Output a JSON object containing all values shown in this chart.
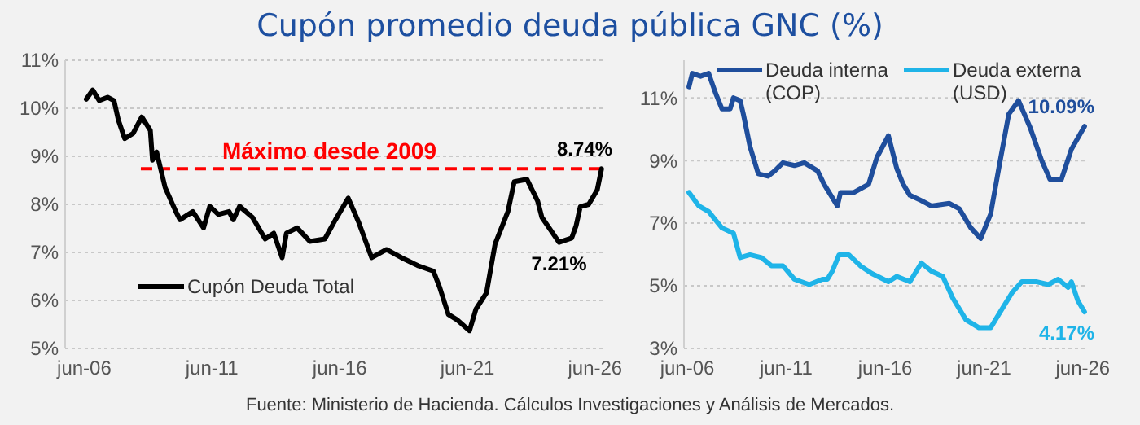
{
  "chart_data": [
    {
      "type": "line",
      "title": "Cupón promedio deuda pública GNC (%)",
      "annotations": [
        "Fuente: Ministerio de Hacienda. Cálculos Investigaciones y Análisis de Mercados.",
        {
          "text": "8.74%",
          "x": "2026-09",
          "y": 8.74
        },
        {
          "text": "7.21%",
          "x": "2025-01",
          "y": 7.21
        }
      ],
      "xlim": [
        "2005-09",
        "2026-11"
      ],
      "xticks": [
        {
          "value": "2006-06",
          "label": "jun-06"
        },
        {
          "value": "2011-06",
          "label": "jun-11"
        },
        {
          "value": "2016-06",
          "label": "jun-16"
        },
        {
          "value": "2021-06",
          "label": "jun-21"
        },
        {
          "value": "2026-06",
          "label": "jun-26"
        }
      ],
      "ylim": [
        5,
        11
      ],
      "yticks": [
        {
          "value": 5,
          "label": "5%"
        },
        {
          "value": 6,
          "label": "6%"
        },
        {
          "value": 7,
          "label": "7%"
        },
        {
          "value": 8,
          "label": "8%"
        },
        {
          "value": 9,
          "label": "9%"
        },
        {
          "value": 10,
          "label": "10%"
        },
        {
          "value": 11,
          "label": "11%"
        }
      ],
      "grid": "y",
      "legend": "bottom left",
      "ref_lines": [
        {
          "axis": "y",
          "value": 8.74,
          "label": "Máximo desde 2009",
          "color": "#ff0000",
          "line_style": "dashed"
        }
      ],
      "series": [
        {
          "name": "Cupón Deuda Total",
          "color": "#000000",
          "x": [
            "2006-07",
            "2006-10",
            "2007-01",
            "2007-05",
            "2007-08",
            "2007-10",
            "2008-01",
            "2008-05",
            "2008-09",
            "2009-01",
            "2009-02",
            "2009-04",
            "2009-08",
            "2010-01",
            "2010-03",
            "2010-09",
            "2011-02",
            "2011-05",
            "2011-09",
            "2012-02",
            "2012-04",
            "2012-07",
            "2013-01",
            "2013-07",
            "2013-11",
            "2014-03",
            "2014-05",
            "2014-10",
            "2015-04",
            "2015-11",
            "2016-04",
            "2016-10",
            "2017-03",
            "2017-09",
            "2018-04",
            "2018-11",
            "2019-07",
            "2020-02",
            "2020-05",
            "2020-09",
            "2021-01",
            "2021-07",
            "2021-10",
            "2022-03",
            "2022-07",
            "2023-01",
            "2023-04",
            "2023-10",
            "2024-03",
            "2024-05",
            "2025-01",
            "2025-07",
            "2025-09",
            "2025-11",
            "2026-03",
            "2026-07",
            "2026-09"
          ],
          "values": [
            10.19,
            10.38,
            10.16,
            10.23,
            10.16,
            9.76,
            9.37,
            9.48,
            9.82,
            9.54,
            8.92,
            9.09,
            8.35,
            7.85,
            7.68,
            7.85,
            7.51,
            7.96,
            7.79,
            7.85,
            7.68,
            7.96,
            7.73,
            7.28,
            7.4,
            6.89,
            7.4,
            7.51,
            7.23,
            7.28,
            7.68,
            8.13,
            7.62,
            6.89,
            7.06,
            6.89,
            6.72,
            6.61,
            6.27,
            5.71,
            5.6,
            5.37,
            5.82,
            6.16,
            7.17,
            7.85,
            8.47,
            8.52,
            8.07,
            7.73,
            7.21,
            7.3,
            7.55,
            7.95,
            8.0,
            8.3,
            8.74
          ]
        }
      ]
    },
    {
      "type": "line",
      "annotations": [
        {
          "text": "10.09%",
          "x": "2026-07",
          "y": 10.09
        },
        {
          "text": "4.17%",
          "x": "2026-07",
          "y": 4.17
        }
      ],
      "xlim": [
        "2006-04",
        "2026-09"
      ],
      "xticks": [
        {
          "value": "2006-06",
          "label": "jun-06"
        },
        {
          "value": "2011-06",
          "label": "jun-11"
        },
        {
          "value": "2016-06",
          "label": "jun-16"
        },
        {
          "value": "2021-06",
          "label": "jun-21"
        },
        {
          "value": "2026-06",
          "label": "jun-26"
        }
      ],
      "ylim": [
        3,
        12.2
      ],
      "yticks": [
        {
          "value": 3,
          "label": "3%"
        },
        {
          "value": 5,
          "label": "5%"
        },
        {
          "value": 7,
          "label": "7%"
        },
        {
          "value": 9,
          "label": "9%"
        },
        {
          "value": 11,
          "label": "11%"
        }
      ],
      "grid": "y",
      "legend": "top",
      "series": [
        {
          "name": "Deuda interna (COP)",
          "color": "#1f4e9c",
          "x": [
            "2006-07",
            "2006-09",
            "2007-02",
            "2007-07",
            "2007-11",
            "2008-03",
            "2008-08",
            "2008-10",
            "2009-02",
            "2009-04",
            "2009-08",
            "2010-01",
            "2010-07",
            "2010-11",
            "2011-04",
            "2011-11",
            "2012-05",
            "2013-01",
            "2013-05",
            "2014-01",
            "2014-03",
            "2014-11",
            "2015-08",
            "2016-01",
            "2016-08",
            "2017-01",
            "2017-05",
            "2017-09",
            "2018-04",
            "2018-10",
            "2019-09",
            "2020-03",
            "2020-10",
            "2021-04",
            "2021-10",
            "2022-03",
            "2022-09",
            "2023-03",
            "2023-10",
            "2024-05",
            "2024-10",
            "2025-05",
            "2025-11",
            "2026-07"
          ],
          "values": [
            11.35,
            11.78,
            11.69,
            11.78,
            11.17,
            10.65,
            10.65,
            11.0,
            10.91,
            10.48,
            9.45,
            8.58,
            8.5,
            8.67,
            8.93,
            8.84,
            8.93,
            8.67,
            8.24,
            7.55,
            7.98,
            7.98,
            8.24,
            9.1,
            9.79,
            8.75,
            8.24,
            7.89,
            7.72,
            7.55,
            7.63,
            7.46,
            6.85,
            6.51,
            7.29,
            8.75,
            10.48,
            10.91,
            10.05,
            9.0,
            8.4,
            8.4,
            9.36,
            10.09
          ]
        },
        {
          "name": "Deuda externa (USD)",
          "color": "#1fb4e8",
          "x": [
            "2006-07",
            "2007-01",
            "2007-07",
            "2008-03",
            "2008-10",
            "2009-02",
            "2009-08",
            "2010-03",
            "2010-09",
            "2011-04",
            "2011-11",
            "2012-08",
            "2013-04",
            "2013-07",
            "2013-10",
            "2014-02",
            "2014-08",
            "2015-03",
            "2015-10",
            "2016-08",
            "2017-01",
            "2017-09",
            "2018-04",
            "2018-10",
            "2019-05",
            "2019-11",
            "2020-07",
            "2021-03",
            "2021-10",
            "2022-04",
            "2022-11",
            "2023-05",
            "2024-02",
            "2024-09",
            "2025-03",
            "2025-09",
            "2025-11",
            "2026-03",
            "2026-07"
          ],
          "values": [
            7.98,
            7.55,
            7.37,
            6.85,
            6.68,
            5.9,
            5.99,
            5.9,
            5.64,
            5.64,
            5.21,
            5.04,
            5.21,
            5.21,
            5.47,
            5.99,
            5.99,
            5.64,
            5.39,
            5.13,
            5.3,
            5.13,
            5.73,
            5.47,
            5.3,
            4.61,
            3.92,
            3.66,
            3.66,
            4.18,
            4.78,
            5.13,
            5.13,
            5.04,
            5.21,
            4.95,
            5.13,
            4.52,
            4.17
          ]
        }
      ]
    }
  ]
}
